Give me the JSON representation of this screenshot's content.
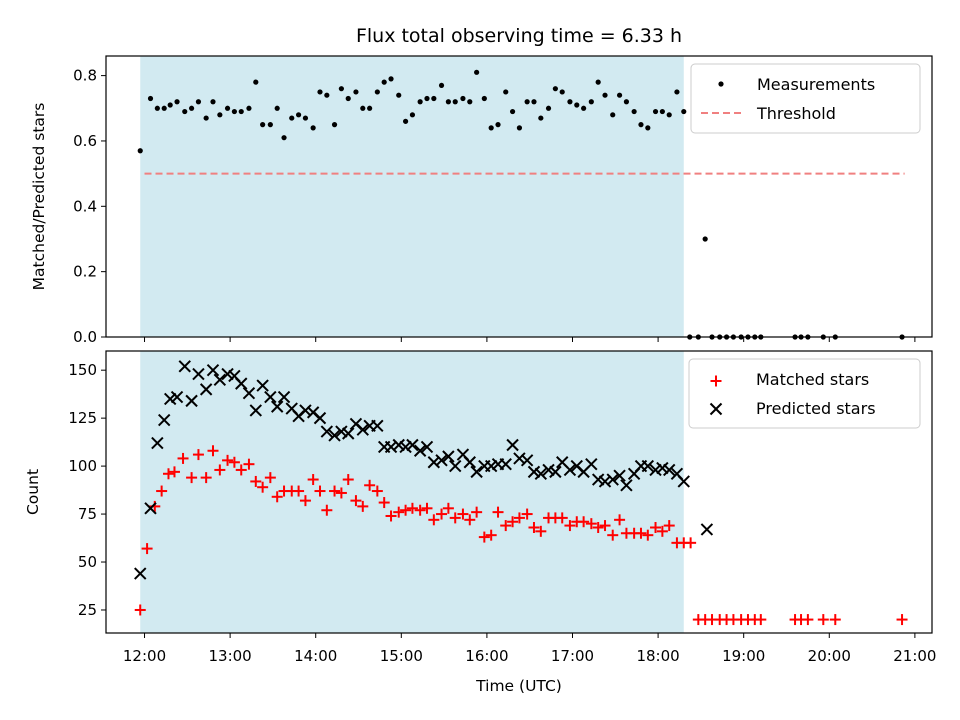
{
  "chart_data": [
    {
      "type": "scatter",
      "title": "Flux total observing time = 6.33 h",
      "xlabel": "",
      "ylabel": "Matched/Predicted stars",
      "ylim": [
        0,
        0.86
      ],
      "yticks": [
        "0.0",
        "0.2",
        "0.4",
        "0.6",
        "0.8"
      ],
      "threshold": 0.5,
      "legend": {
        "position": "top-right",
        "entries": [
          "Measurements",
          "Threshold"
        ]
      },
      "series": [
        {
          "name": "Measurements",
          "color": "#000000",
          "x": [
            11.95,
            12.07,
            12.15,
            12.23,
            12.3,
            12.38,
            12.47,
            12.55,
            12.63,
            12.72,
            12.8,
            12.88,
            12.97,
            13.05,
            13.13,
            13.22,
            13.3,
            13.38,
            13.47,
            13.55,
            13.63,
            13.72,
            13.8,
            13.88,
            13.97,
            14.05,
            14.13,
            14.22,
            14.3,
            14.38,
            14.47,
            14.55,
            14.63,
            14.72,
            14.8,
            14.88,
            14.97,
            15.05,
            15.13,
            15.22,
            15.3,
            15.38,
            15.47,
            15.55,
            15.63,
            15.72,
            15.8,
            15.88,
            15.97,
            16.05,
            16.13,
            16.22,
            16.3,
            16.38,
            16.47,
            16.55,
            16.63,
            16.72,
            16.8,
            16.88,
            16.97,
            17.05,
            17.13,
            17.22,
            17.3,
            17.38,
            17.47,
            17.55,
            17.63,
            17.72,
            17.8,
            17.88,
            17.97,
            18.05,
            18.13,
            18.22,
            18.3,
            18.37,
            18.47,
            18.55,
            18.63,
            18.72,
            18.8,
            18.88,
            18.97,
            19.05,
            19.13,
            19.2,
            19.6,
            19.67,
            19.75,
            19.93,
            20.07,
            20.85
          ],
          "y": [
            0.57,
            0.73,
            0.7,
            0.7,
            0.71,
            0.72,
            0.69,
            0.7,
            0.72,
            0.67,
            0.72,
            0.68,
            0.7,
            0.69,
            0.69,
            0.7,
            0.78,
            0.65,
            0.65,
            0.7,
            0.61,
            0.67,
            0.68,
            0.67,
            0.64,
            0.75,
            0.74,
            0.65,
            0.76,
            0.73,
            0.75,
            0.7,
            0.7,
            0.75,
            0.78,
            0.79,
            0.74,
            0.66,
            0.68,
            0.72,
            0.73,
            0.73,
            0.77,
            0.72,
            0.72,
            0.73,
            0.72,
            0.81,
            0.73,
            0.64,
            0.65,
            0.75,
            0.69,
            0.64,
            0.72,
            0.72,
            0.67,
            0.7,
            0.76,
            0.75,
            0.72,
            0.71,
            0.7,
            0.72,
            0.78,
            0.74,
            0.68,
            0.74,
            0.72,
            0.69,
            0.65,
            0.64,
            0.69,
            0.69,
            0.68,
            0.75,
            0.69,
            0.0,
            0.0,
            0.3,
            0.0,
            0.0,
            0.0,
            0.0,
            0.0,
            0.0,
            0.0,
            0.0,
            0.0,
            0.0,
            0.0,
            0.0,
            0.0,
            0.0
          ]
        },
        {
          "name": "Threshold",
          "color": "#f08080",
          "x": [
            12.0,
            20.88
          ],
          "y": [
            0.5,
            0.5
          ]
        }
      ]
    },
    {
      "type": "scatter",
      "title": "",
      "xlabel": "Time (UTC)",
      "ylabel": "Count",
      "ylim": [
        13,
        160
      ],
      "yticks": [
        "25",
        "50",
        "75",
        "100",
        "125",
        "150"
      ],
      "xticks": [
        "12:00",
        "13:00",
        "14:00",
        "15:00",
        "16:00",
        "17:00",
        "18:00",
        "19:00",
        "20:00",
        "21:00"
      ],
      "legend": {
        "position": "top-right",
        "entries": [
          "Matched stars",
          "Predicted stars"
        ]
      },
      "series": [
        {
          "name": "Matched stars",
          "color": "#ff0000",
          "marker": "+",
          "x": [
            11.95,
            12.03,
            12.12,
            12.2,
            12.28,
            12.35,
            12.45,
            12.55,
            12.63,
            12.72,
            12.8,
            12.88,
            12.97,
            13.05,
            13.13,
            13.22,
            13.3,
            13.38,
            13.47,
            13.55,
            13.63,
            13.72,
            13.8,
            13.88,
            13.97,
            14.05,
            14.13,
            14.22,
            14.3,
            14.38,
            14.47,
            14.55,
            14.63,
            14.72,
            14.8,
            14.88,
            14.97,
            15.05,
            15.13,
            15.22,
            15.3,
            15.38,
            15.47,
            15.55,
            15.63,
            15.72,
            15.8,
            15.88,
            15.97,
            16.05,
            16.13,
            16.22,
            16.3,
            16.38,
            16.47,
            16.55,
            16.63,
            16.72,
            16.8,
            16.88,
            16.97,
            17.05,
            17.13,
            17.22,
            17.3,
            17.38,
            17.47,
            17.55,
            17.63,
            17.72,
            17.8,
            17.88,
            17.97,
            18.05,
            18.13,
            18.22,
            18.3,
            18.38,
            18.47,
            18.55,
            18.63,
            18.72,
            18.8,
            18.88,
            18.97,
            19.05,
            19.13,
            19.2,
            19.6,
            19.67,
            19.75,
            19.93,
            20.07,
            20.85
          ],
          "y": [
            25,
            57,
            79,
            87,
            96,
            97,
            104,
            94,
            106,
            94,
            108,
            98,
            103,
            102,
            98,
            101,
            92,
            89,
            94,
            84,
            87,
            87,
            87,
            82,
            93,
            87,
            77,
            87,
            86,
            93,
            82,
            79,
            90,
            87,
            81,
            74,
            76,
            77,
            78,
            77,
            78,
            72,
            75,
            78,
            73,
            75,
            72,
            76,
            63,
            64,
            76,
            69,
            71,
            73,
            75,
            68,
            66,
            73,
            73,
            73,
            69,
            71,
            71,
            70,
            68,
            69,
            64,
            72,
            65,
            65,
            65,
            64,
            68,
            66,
            69,
            60,
            60,
            60,
            20,
            20,
            20,
            20,
            20,
            20,
            20,
            20,
            20,
            20,
            20,
            20,
            20,
            20,
            20,
            20
          ],
          "note_y_unit": ""
        },
        {
          "name": "Predicted stars",
          "color": "#000000",
          "marker": "x",
          "x": [
            11.95,
            12.07,
            12.15,
            12.23,
            12.3,
            12.38,
            12.47,
            12.55,
            12.63,
            12.72,
            12.8,
            12.88,
            12.97,
            13.05,
            13.13,
            13.22,
            13.3,
            13.38,
            13.47,
            13.55,
            13.63,
            13.72,
            13.8,
            13.88,
            13.97,
            14.05,
            14.13,
            14.22,
            14.3,
            14.38,
            14.47,
            14.55,
            14.63,
            14.72,
            14.8,
            14.88,
            14.97,
            15.05,
            15.13,
            15.22,
            15.3,
            15.38,
            15.47,
            15.55,
            15.63,
            15.72,
            15.8,
            15.88,
            15.97,
            16.05,
            16.13,
            16.22,
            16.3,
            16.38,
            16.47,
            16.55,
            16.63,
            16.72,
            16.8,
            16.88,
            16.97,
            17.05,
            17.13,
            17.22,
            17.3,
            17.38,
            17.47,
            17.55,
            17.63,
            17.72,
            17.8,
            17.88,
            17.97,
            18.05,
            18.13,
            18.22,
            18.3,
            18.57
          ],
          "y": [
            44,
            78,
            112,
            124,
            135,
            136,
            152,
            134,
            148,
            140,
            150,
            145,
            148,
            147,
            143,
            138,
            129,
            142,
            136,
            131,
            136,
            130,
            126,
            129,
            128,
            125,
            118,
            116,
            118,
            117,
            122,
            119,
            121,
            121,
            110,
            110,
            111,
            110,
            111,
            108,
            110,
            102,
            103,
            105,
            100,
            106,
            102,
            97,
            100,
            100,
            101,
            101,
            111,
            104,
            103,
            97,
            96,
            98,
            97,
            102,
            98,
            100,
            97,
            101,
            93,
            92,
            93,
            95,
            90,
            96,
            100,
            100,
            98,
            99,
            98,
            96,
            92,
            67
          ]
        }
      ]
    }
  ]
}
